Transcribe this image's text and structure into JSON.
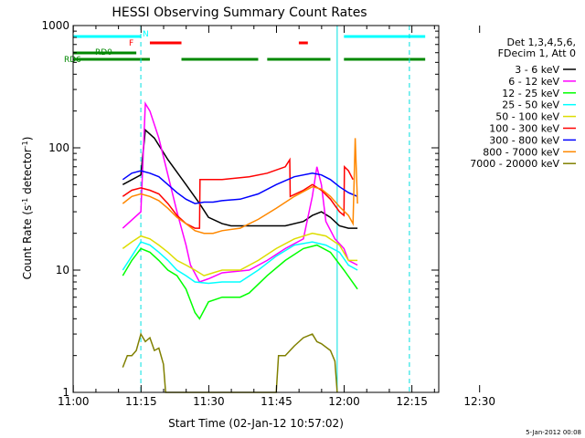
{
  "chart_data": {
    "type": "line",
    "title": "HESSI Observing Summary Count Rates",
    "xlabel": "Start Time (02-Jan-12 10:57:02)",
    "ylabel_main": "Count Rate (s",
    "ylabel_sup1": "-1",
    "ylabel_mid": " detector",
    "ylabel_sup2": "-1",
    "ylabel_end": ")",
    "y_scale": "log",
    "ylim": [
      1,
      1000
    ],
    "xlim_minutes": [
      -3,
      78
    ],
    "x_ticks": [
      "11:00",
      "11:15",
      "11:30",
      "11:45",
      "12:00",
      "12:15",
      "12:30"
    ],
    "y_ticks": [
      "1",
      "10",
      "100",
      "1000"
    ],
    "footer": "5-Jan-2012 00:08",
    "legend": {
      "header": [
        "Det 1,3,4,5,6,",
        "FDecim 1, Att 0"
      ],
      "placement": "right",
      "entries": [
        {
          "label": "3 - 6 keV",
          "color": "#000000"
        },
        {
          "label": "6 - 12 keV",
          "color": "#ff00ff"
        },
        {
          "label": "12 - 25 keV",
          "color": "#00ff00"
        },
        {
          "label": "25 - 50 keV",
          "color": "#00ffff"
        },
        {
          "label": "50 - 100 keV",
          "color": "#dddd00"
        },
        {
          "label": "100 - 300 keV",
          "color": "#ff0000"
        },
        {
          "label": "300 - 800 keV",
          "color": "#0000ff"
        },
        {
          "label": "800 - 7000 keV",
          "color": "#ff8800"
        },
        {
          "label": "7000 - 20000 keV",
          "color": "#808000"
        }
      ]
    },
    "flags": [
      {
        "label": "N",
        "color": "#00ffff",
        "segments": [
          [
            -3,
            12
          ],
          [
            57,
            75
          ]
        ]
      },
      {
        "label": "F",
        "color": "#ff0000",
        "segments": [
          [
            14,
            21
          ],
          [
            47,
            49
          ]
        ]
      },
      {
        "label": "RD0",
        "color": "#008800",
        "segments": [
          [
            -3,
            11
          ]
        ]
      },
      {
        "label": "RD6",
        "color": "#008800",
        "segments": [
          [
            -3,
            14
          ],
          [
            21,
            38
          ],
          [
            40,
            54
          ],
          [
            57,
            75
          ]
        ]
      }
    ],
    "solid_vlines_min": [
      -3,
      55.5
    ],
    "dashed_vlines_min": [
      12,
      71.5
    ],
    "series": [
      {
        "name": "3 - 6 keV",
        "color": "#000000",
        "points": [
          [
            8,
            50
          ],
          [
            12,
            60
          ],
          [
            13,
            140
          ],
          [
            15,
            120
          ],
          [
            18,
            80
          ],
          [
            22,
            50
          ],
          [
            25,
            35
          ],
          [
            27,
            27
          ],
          [
            30,
            24
          ],
          [
            32,
            23
          ],
          [
            38,
            23
          ],
          [
            44,
            23
          ],
          [
            48,
            25
          ],
          [
            50,
            28
          ],
          [
            52,
            30
          ],
          [
            54,
            27
          ],
          [
            56,
            23
          ],
          [
            58,
            22
          ],
          [
            60,
            22
          ]
        ]
      },
      {
        "name": "6 - 12 keV",
        "color": "#ff00ff",
        "points": [
          [
            8,
            22
          ],
          [
            12,
            30
          ],
          [
            13,
            230
          ],
          [
            14,
            200
          ],
          [
            16,
            120
          ],
          [
            18,
            60
          ],
          [
            20,
            30
          ],
          [
            22,
            16
          ],
          [
            23,
            11
          ],
          [
            25,
            8
          ],
          [
            27,
            8.5
          ],
          [
            30,
            9.5
          ],
          [
            36,
            10
          ],
          [
            40,
            12
          ],
          [
            44,
            15
          ],
          [
            48,
            18
          ],
          [
            50,
            40
          ],
          [
            51,
            70
          ],
          [
            52,
            50
          ],
          [
            53,
            25
          ],
          [
            55,
            18
          ],
          [
            57,
            15
          ],
          [
            58,
            12
          ],
          [
            60,
            11
          ]
        ]
      },
      {
        "name": "12 - 25 keV",
        "color": "#00ff00",
        "points": [
          [
            8,
            9
          ],
          [
            10,
            12
          ],
          [
            12,
            15
          ],
          [
            14,
            14
          ],
          [
            16,
            12
          ],
          [
            18,
            10
          ],
          [
            20,
            9
          ],
          [
            22,
            7
          ],
          [
            24,
            4.5
          ],
          [
            25,
            4
          ],
          [
            27,
            5.5
          ],
          [
            30,
            6
          ],
          [
            34,
            6
          ],
          [
            36,
            6.5
          ],
          [
            40,
            9
          ],
          [
            44,
            12
          ],
          [
            48,
            15
          ],
          [
            51,
            16
          ],
          [
            54,
            14
          ],
          [
            57,
            10
          ],
          [
            60,
            7
          ]
        ]
      },
      {
        "name": "25 - 50 keV",
        "color": "#00ffff",
        "points": [
          [
            8,
            10
          ],
          [
            10,
            13
          ],
          [
            12,
            17
          ],
          [
            14,
            16
          ],
          [
            16,
            14
          ],
          [
            18,
            12
          ],
          [
            20,
            10
          ],
          [
            22,
            9
          ],
          [
            24,
            8
          ],
          [
            27,
            7.8
          ],
          [
            30,
            8
          ],
          [
            34,
            8
          ],
          [
            38,
            10
          ],
          [
            42,
            13
          ],
          [
            46,
            16
          ],
          [
            50,
            17
          ],
          [
            53,
            16
          ],
          [
            56,
            14
          ],
          [
            58,
            11
          ],
          [
            60,
            10
          ]
        ]
      },
      {
        "name": "50 - 100 keV",
        "color": "#dddd00",
        "points": [
          [
            8,
            15
          ],
          [
            10,
            17
          ],
          [
            12,
            19
          ],
          [
            14,
            18
          ],
          [
            16,
            16
          ],
          [
            18,
            14
          ],
          [
            20,
            12
          ],
          [
            22,
            11
          ],
          [
            24,
            10
          ],
          [
            26,
            9
          ],
          [
            28,
            9.5
          ],
          [
            30,
            10
          ],
          [
            34,
            10
          ],
          [
            38,
            12
          ],
          [
            42,
            15
          ],
          [
            46,
            18
          ],
          [
            50,
            20
          ],
          [
            53,
            19
          ],
          [
            56,
            16
          ],
          [
            58,
            12
          ],
          [
            60,
            12
          ]
        ]
      },
      {
        "name": "100 - 300 keV",
        "color": "#ff0000",
        "points": [
          [
            8,
            40
          ],
          [
            10,
            45
          ],
          [
            12,
            47
          ],
          [
            14,
            45
          ],
          [
            16,
            42
          ],
          [
            18,
            35
          ],
          [
            20,
            28
          ],
          [
            22,
            24
          ],
          [
            24,
            22
          ],
          [
            25,
            22
          ],
          [
            25.1,
            55
          ],
          [
            30,
            55
          ],
          [
            36,
            58
          ],
          [
            40,
            62
          ],
          [
            44,
            70
          ],
          [
            45,
            80
          ],
          [
            45.1,
            40
          ],
          [
            48,
            45
          ],
          [
            50,
            50
          ],
          [
            52,
            45
          ],
          [
            54,
            38
          ],
          [
            56,
            30
          ],
          [
            57,
            28
          ],
          [
            57.1,
            70
          ],
          [
            58,
            65
          ],
          [
            59,
            55
          ]
        ]
      },
      {
        "name": "300 - 800 keV",
        "color": "#0000ff",
        "points": [
          [
            8,
            55
          ],
          [
            10,
            62
          ],
          [
            12,
            65
          ],
          [
            14,
            62
          ],
          [
            16,
            58
          ],
          [
            18,
            50
          ],
          [
            20,
            43
          ],
          [
            22,
            38
          ],
          [
            24,
            35
          ],
          [
            26,
            36
          ],
          [
            28,
            36
          ],
          [
            30,
            37
          ],
          [
            34,
            38
          ],
          [
            38,
            42
          ],
          [
            42,
            50
          ],
          [
            46,
            58
          ],
          [
            50,
            62
          ],
          [
            52,
            60
          ],
          [
            54,
            55
          ],
          [
            56,
            48
          ],
          [
            58,
            43
          ],
          [
            60,
            40
          ]
        ]
      },
      {
        "name": "800 - 7000 keV",
        "color": "#ff8800",
        "points": [
          [
            8,
            35
          ],
          [
            10,
            40
          ],
          [
            12,
            42
          ],
          [
            14,
            40
          ],
          [
            16,
            37
          ],
          [
            18,
            32
          ],
          [
            20,
            27
          ],
          [
            22,
            24
          ],
          [
            24,
            21
          ],
          [
            26,
            20
          ],
          [
            28,
            20
          ],
          [
            30,
            21
          ],
          [
            34,
            22
          ],
          [
            38,
            26
          ],
          [
            42,
            32
          ],
          [
            46,
            40
          ],
          [
            50,
            48
          ],
          [
            52,
            46
          ],
          [
            54,
            40
          ],
          [
            56,
            33
          ],
          [
            58,
            28
          ],
          [
            59,
            24
          ],
          [
            59.5,
            120
          ],
          [
            60,
            35
          ]
        ]
      },
      {
        "name": "7000 - 20000 keV",
        "color": "#808000",
        "points": [
          [
            8,
            1.6
          ],
          [
            9,
            2
          ],
          [
            10,
            2
          ],
          [
            11,
            2.2
          ],
          [
            12,
            3
          ],
          [
            13,
            2.6
          ],
          [
            14,
            2.8
          ],
          [
            15,
            2.2
          ],
          [
            16,
            2.3
          ],
          [
            17,
            1.7
          ],
          [
            17.5,
            1
          ],
          [
            42,
            1
          ],
          [
            42.5,
            2
          ],
          [
            44,
            2
          ],
          [
            46,
            2.4
          ],
          [
            48,
            2.8
          ],
          [
            50,
            3
          ],
          [
            51,
            2.6
          ],
          [
            52,
            2.5
          ],
          [
            54,
            2.2
          ],
          [
            55,
            1.8
          ],
          [
            55.5,
            1
          ]
        ]
      }
    ]
  }
}
